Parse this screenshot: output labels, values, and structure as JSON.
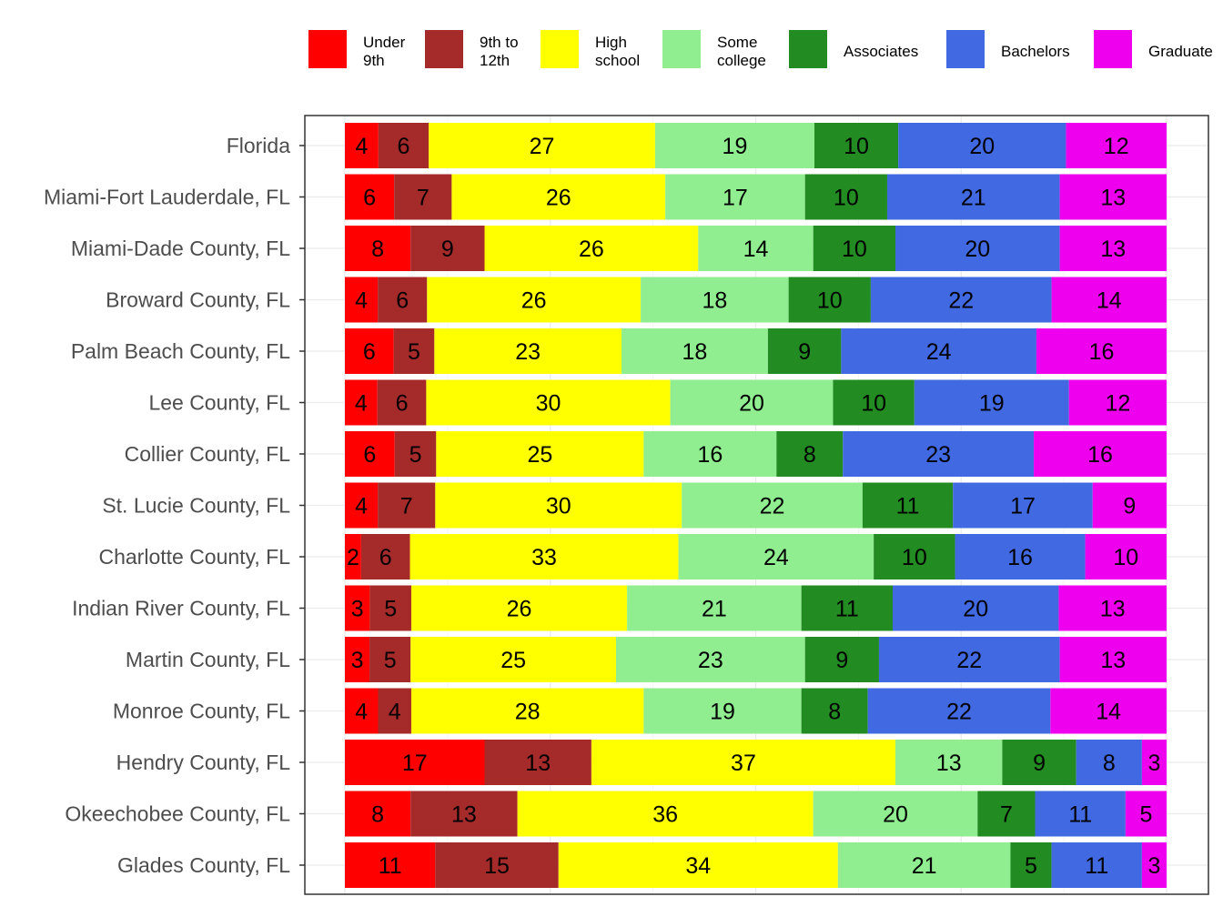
{
  "chart_data": {
    "type": "bar",
    "orientation": "horizontal",
    "stacked": true,
    "normalized": true,
    "title": "",
    "xlabel": "",
    "ylabel": "",
    "xlim": [
      0,
      100
    ],
    "grid": true,
    "legend_position": "top",
    "categories": [
      "Florida",
      "Miami-Fort Lauderdale, FL",
      "Miami-Dade County, FL",
      "Broward County, FL",
      "Palm Beach County, FL",
      "Lee County, FL",
      "Collier County, FL",
      "St. Lucie County, FL",
      "Charlotte County, FL",
      "Indian River County, FL",
      "Martin County, FL",
      "Monroe County, FL",
      "Hendry County, FL",
      "Okeechobee County, FL",
      "Glades County, FL"
    ],
    "series": [
      {
        "name": "Under 9th",
        "legend_lines": [
          "Under",
          "9th"
        ],
        "color": "#ff0000",
        "values": [
          4,
          6,
          8,
          4,
          6,
          4,
          6,
          4,
          2,
          3,
          3,
          4,
          17,
          8,
          11
        ]
      },
      {
        "name": "9th to 12th",
        "legend_lines": [
          "9th to",
          "12th"
        ],
        "color": "#a52a2a",
        "values": [
          6,
          7,
          9,
          6,
          5,
          6,
          5,
          7,
          6,
          5,
          5,
          4,
          13,
          13,
          15
        ]
      },
      {
        "name": "High school",
        "legend_lines": [
          "High",
          "school"
        ],
        "color": "#ffff00",
        "values": [
          27,
          26,
          26,
          26,
          23,
          30,
          25,
          30,
          33,
          26,
          25,
          28,
          37,
          36,
          34
        ]
      },
      {
        "name": "Some college",
        "legend_lines": [
          "Some",
          "college"
        ],
        "color": "#90ee90",
        "values": [
          19,
          17,
          14,
          18,
          18,
          20,
          16,
          22,
          24,
          21,
          23,
          19,
          13,
          20,
          21
        ]
      },
      {
        "name": "Associates",
        "legend_lines": [
          "Associates"
        ],
        "color": "#228b22",
        "values": [
          10,
          10,
          10,
          10,
          9,
          10,
          8,
          11,
          10,
          11,
          9,
          8,
          9,
          7,
          5
        ]
      },
      {
        "name": "Bachelors",
        "legend_lines": [
          "Bachelors"
        ],
        "color": "#4169e1",
        "values": [
          20,
          21,
          20,
          22,
          24,
          19,
          23,
          17,
          16,
          20,
          22,
          22,
          8,
          11,
          11
        ]
      },
      {
        "name": "Graduate",
        "legend_lines": [
          "Graduate"
        ],
        "color": "#ee00ee",
        "values": [
          12,
          13,
          13,
          14,
          16,
          12,
          16,
          9,
          10,
          13,
          13,
          14,
          3,
          5,
          3
        ]
      }
    ]
  }
}
